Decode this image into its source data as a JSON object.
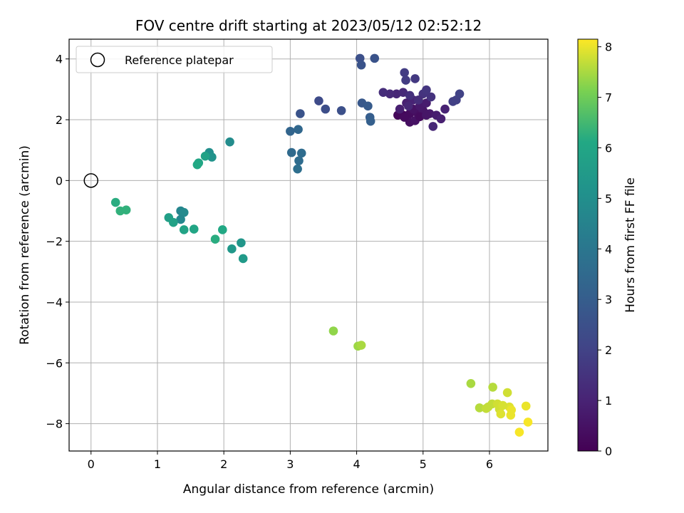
{
  "chart_data": {
    "type": "scatter",
    "title": "FOV centre drift starting at 2023/05/12 02:52:12",
    "xlabel": "Angular distance from reference (arcmin)",
    "ylabel": "Rotation from reference (arcmin)",
    "xlim": [
      -0.33,
      6.88
    ],
    "ylim": [
      -8.9,
      4.65
    ],
    "xticks": [
      0,
      1,
      2,
      3,
      4,
      5,
      6
    ],
    "xtick_labels": [
      "0",
      "1",
      "2",
      "3",
      "4",
      "5",
      "6"
    ],
    "yticks": [
      4,
      2,
      0,
      -2,
      -4,
      -6,
      -8
    ],
    "ytick_labels": [
      "4",
      "2",
      "0",
      "−2",
      "−4",
      "−6",
      "−8"
    ],
    "grid": true,
    "legend": {
      "placement": "top-left",
      "entries": [
        "Reference platepar"
      ]
    },
    "reference_point": {
      "x": 0,
      "y": 0
    },
    "colorbar": {
      "label": "Hours from first FF file",
      "colormap": "viridis",
      "range": [
        0,
        8.15
      ],
      "ticks": [
        0,
        1,
        2,
        3,
        4,
        5,
        6,
        7,
        8
      ],
      "tick_labels": [
        "0",
        "1",
        "2",
        "3",
        "4",
        "5",
        "6",
        "7",
        "8"
      ]
    },
    "points": [
      {
        "x": 4.7,
        "y": 2.15,
        "t": 0.1
      },
      {
        "x": 4.62,
        "y": 2.15,
        "t": 0.2
      },
      {
        "x": 4.8,
        "y": 2.2,
        "t": 0.3
      },
      {
        "x": 4.9,
        "y": 2.25,
        "t": 0.4
      },
      {
        "x": 4.85,
        "y": 2.35,
        "t": 0.5
      },
      {
        "x": 5.0,
        "y": 2.3,
        "t": 0.6
      },
      {
        "x": 5.1,
        "y": 2.2,
        "t": 0.7
      },
      {
        "x": 5.2,
        "y": 2.15,
        "t": 0.8
      },
      {
        "x": 5.27,
        "y": 2.03,
        "t": 0.9
      },
      {
        "x": 5.33,
        "y": 2.35,
        "t": 1.0
      },
      {
        "x": 5.15,
        "y": 1.78,
        "t": 1.1
      },
      {
        "x": 4.8,
        "y": 1.92,
        "t": 0.4
      },
      {
        "x": 4.88,
        "y": 1.97,
        "t": 0.5
      },
      {
        "x": 4.72,
        "y": 2.08,
        "t": 0.3
      },
      {
        "x": 4.95,
        "y": 2.45,
        "t": 0.7
      },
      {
        "x": 5.05,
        "y": 2.55,
        "t": 0.8
      },
      {
        "x": 4.75,
        "y": 2.55,
        "t": 0.9
      },
      {
        "x": 4.85,
        "y": 2.65,
        "t": 1.0
      },
      {
        "x": 4.6,
        "y": 2.85,
        "t": 1.1
      },
      {
        "x": 4.5,
        "y": 2.85,
        "t": 1.2
      },
      {
        "x": 4.4,
        "y": 2.9,
        "t": 1.3
      },
      {
        "x": 4.7,
        "y": 2.9,
        "t": 1.2
      },
      {
        "x": 4.8,
        "y": 2.8,
        "t": 1.4
      },
      {
        "x": 5.0,
        "y": 2.85,
        "t": 1.5
      },
      {
        "x": 5.05,
        "y": 2.98,
        "t": 1.6
      },
      {
        "x": 5.12,
        "y": 2.75,
        "t": 1.5
      },
      {
        "x": 4.88,
        "y": 3.35,
        "t": 1.7
      },
      {
        "x": 4.72,
        "y": 3.55,
        "t": 1.8
      },
      {
        "x": 4.74,
        "y": 3.3,
        "t": 1.8
      },
      {
        "x": 5.45,
        "y": 2.6,
        "t": 1.9
      },
      {
        "x": 5.5,
        "y": 2.65,
        "t": 1.95
      },
      {
        "x": 5.55,
        "y": 2.85,
        "t": 2.0
      },
      {
        "x": 4.95,
        "y": 2.1,
        "t": 0.3
      },
      {
        "x": 5.05,
        "y": 2.15,
        "t": 0.6
      },
      {
        "x": 4.65,
        "y": 2.35,
        "t": 0.9
      },
      {
        "x": 4.93,
        "y": 2.65,
        "t": 1.3
      },
      {
        "x": 4.78,
        "y": 2.45,
        "t": 1.1
      },
      {
        "x": 3.43,
        "y": 2.62,
        "t": 2.3
      },
      {
        "x": 3.53,
        "y": 2.35,
        "t": 2.4
      },
      {
        "x": 3.77,
        "y": 2.3,
        "t": 2.5
      },
      {
        "x": 3.15,
        "y": 2.2,
        "t": 2.6
      },
      {
        "x": 4.05,
        "y": 4.02,
        "t": 2.5
      },
      {
        "x": 4.27,
        "y": 4.02,
        "t": 2.6
      },
      {
        "x": 4.07,
        "y": 3.8,
        "t": 2.6
      },
      {
        "x": 4.08,
        "y": 2.55,
        "t": 2.8
      },
      {
        "x": 4.17,
        "y": 2.45,
        "t": 2.9
      },
      {
        "x": 4.2,
        "y": 2.08,
        "t": 3.0
      },
      {
        "x": 4.21,
        "y": 1.95,
        "t": 3.1
      },
      {
        "x": 3.0,
        "y": 1.62,
        "t": 3.3
      },
      {
        "x": 3.12,
        "y": 1.68,
        "t": 3.4
      },
      {
        "x": 3.02,
        "y": 0.92,
        "t": 3.5
      },
      {
        "x": 3.17,
        "y": 0.9,
        "t": 3.6
      },
      {
        "x": 3.13,
        "y": 0.65,
        "t": 3.6
      },
      {
        "x": 3.11,
        "y": 0.38,
        "t": 3.7
      },
      {
        "x": 2.09,
        "y": 1.27,
        "t": 4.9
      },
      {
        "x": 1.78,
        "y": 0.92,
        "t": 5.0
      },
      {
        "x": 1.82,
        "y": 0.77,
        "t": 5.2
      },
      {
        "x": 1.72,
        "y": 0.8,
        "t": 5.8
      },
      {
        "x": 1.62,
        "y": 0.58,
        "t": 6.0
      },
      {
        "x": 1.6,
        "y": 0.52,
        "t": 6.1
      },
      {
        "x": 1.35,
        "y": -1.0,
        "t": 4.6
      },
      {
        "x": 1.4,
        "y": -1.05,
        "t": 4.8
      },
      {
        "x": 1.35,
        "y": -1.28,
        "t": 4.7
      },
      {
        "x": 1.17,
        "y": -1.22,
        "t": 5.7
      },
      {
        "x": 1.24,
        "y": -1.38,
        "t": 5.8
      },
      {
        "x": 1.4,
        "y": -1.62,
        "t": 5.9
      },
      {
        "x": 1.55,
        "y": -1.6,
        "t": 6.0
      },
      {
        "x": 1.98,
        "y": -1.62,
        "t": 6.1
      },
      {
        "x": 1.87,
        "y": -1.93,
        "t": 6.2
      },
      {
        "x": 2.26,
        "y": -2.05,
        "t": 5.3
      },
      {
        "x": 2.12,
        "y": -2.25,
        "t": 5.4
      },
      {
        "x": 2.29,
        "y": -2.57,
        "t": 5.5
      },
      {
        "x": 0.37,
        "y": -0.72,
        "t": 6.2
      },
      {
        "x": 0.44,
        "y": -1.0,
        "t": 6.3
      },
      {
        "x": 0.53,
        "y": -0.97,
        "t": 6.3
      },
      {
        "x": 3.65,
        "y": -4.95,
        "t": 7.3
      },
      {
        "x": 4.02,
        "y": -5.45,
        "t": 7.4
      },
      {
        "x": 4.07,
        "y": -5.42,
        "t": 7.5
      },
      {
        "x": 5.72,
        "y": -6.68,
        "t": 7.5
      },
      {
        "x": 5.85,
        "y": -7.48,
        "t": 7.6
      },
      {
        "x": 5.98,
        "y": -7.45,
        "t": 7.7
      },
      {
        "x": 6.05,
        "y": -6.8,
        "t": 7.6
      },
      {
        "x": 6.04,
        "y": -7.35,
        "t": 7.7
      },
      {
        "x": 6.12,
        "y": -7.35,
        "t": 7.8
      },
      {
        "x": 6.15,
        "y": -7.52,
        "t": 7.8
      },
      {
        "x": 6.17,
        "y": -7.68,
        "t": 7.9
      },
      {
        "x": 6.27,
        "y": -6.98,
        "t": 7.8
      },
      {
        "x": 6.3,
        "y": -7.45,
        "t": 7.9
      },
      {
        "x": 6.33,
        "y": -7.55,
        "t": 8.0
      },
      {
        "x": 6.32,
        "y": -7.72,
        "t": 8.0
      },
      {
        "x": 6.45,
        "y": -8.28,
        "t": 8.1
      },
      {
        "x": 6.55,
        "y": -7.42,
        "t": 8.0
      },
      {
        "x": 6.58,
        "y": -7.95,
        "t": 8.1
      },
      {
        "x": 5.95,
        "y": -7.5,
        "t": 7.7
      },
      {
        "x": 6.2,
        "y": -7.4,
        "t": 7.85
      }
    ]
  }
}
